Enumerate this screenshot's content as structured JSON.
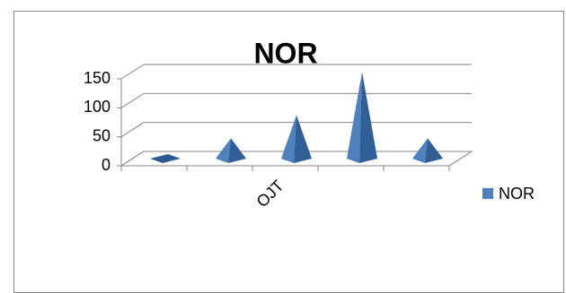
{
  "chart_data": {
    "type": "pyramid",
    "title": "NOR",
    "categories": [
      null,
      null,
      "OJT",
      null,
      null
    ],
    "series": [
      {
        "name": "NOR",
        "color": "#4f81bd",
        "values": [
          0,
          35,
          75,
          150,
          35
        ]
      }
    ],
    "ylim": [
      0,
      150
    ],
    "yticks": [
      0,
      50,
      100,
      150
    ],
    "grid": true,
    "legend": "right"
  }
}
